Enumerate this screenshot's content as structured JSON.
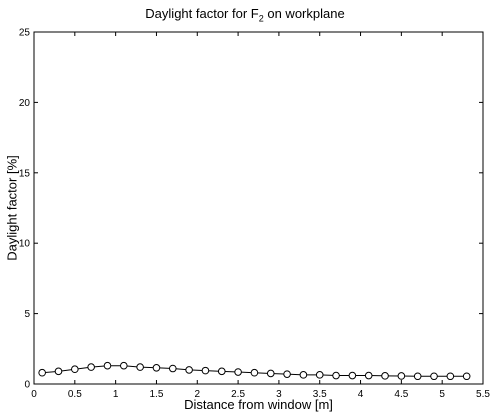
{
  "chart_data": {
    "type": "line",
    "title_prefix": "Daylight factor for F",
    "title_subscript": "2",
    "title_suffix": " on workplane",
    "xlabel": "Distance from window [m]",
    "ylabel": "Daylight factor [%]",
    "xlim": [
      0,
      5.5
    ],
    "ylim": [
      0,
      25
    ],
    "x_ticks": [
      0,
      0.5,
      1,
      1.5,
      2,
      2.5,
      3,
      3.5,
      4,
      4.5,
      5,
      5.5
    ],
    "x_tick_labels": [
      "0",
      "0.5",
      "1",
      "1.5",
      "2",
      "2.5",
      "3",
      "3.5",
      "4",
      "4.5",
      "5",
      "5.5"
    ],
    "y_ticks": [
      0,
      5,
      10,
      15,
      20,
      25
    ],
    "y_tick_labels": [
      "0",
      "5",
      "10",
      "15",
      "20",
      "25"
    ],
    "grid": false,
    "marker": "open-circle",
    "series": [
      {
        "x": [
          0.1,
          0.3,
          0.5,
          0.7,
          0.9,
          1.1,
          1.3,
          1.5,
          1.7,
          1.9,
          2.1,
          2.3,
          2.5,
          2.7,
          2.9,
          3.1,
          3.3,
          3.5,
          3.7,
          3.9,
          4.1,
          4.3,
          4.5,
          4.7,
          4.9,
          5.1,
          5.3
        ],
        "values": [
          0.8,
          0.9,
          1.05,
          1.2,
          1.3,
          1.3,
          1.2,
          1.15,
          1.1,
          1.0,
          0.95,
          0.9,
          0.85,
          0.8,
          0.75,
          0.7,
          0.65,
          0.65,
          0.6,
          0.6,
          0.6,
          0.58,
          0.57,
          0.55,
          0.55,
          0.55,
          0.55
        ]
      }
    ]
  }
}
